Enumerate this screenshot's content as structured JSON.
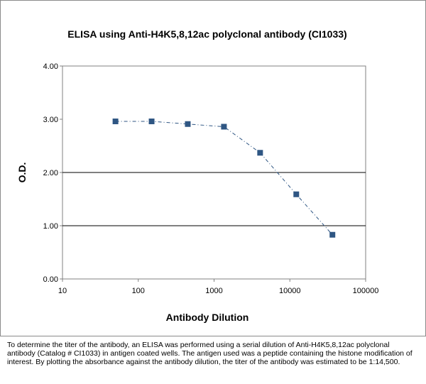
{
  "chart_data": {
    "type": "line",
    "title": "ELISA using Anti-H4K5,8,12ac  polyclonal antibody (CI1033)",
    "xlabel": "Antibody Dilution",
    "ylabel": "O.D.",
    "x_scale": "log",
    "xlim": [
      10,
      100000
    ],
    "ylim": [
      0,
      4
    ],
    "x_tick_labels": [
      "10",
      "100",
      "1000",
      "10000",
      "100000"
    ],
    "y_tick_labels": [
      "0.00",
      "1.00",
      "2.00",
      "3.00",
      "4.00"
    ],
    "gridlines_y": [
      1,
      2
    ],
    "series": [
      {
        "color": "#2F5683",
        "x": [
          50,
          150,
          450,
          1350,
          4050,
          12150,
          36450
        ],
        "y": [
          2.96,
          2.96,
          2.91,
          2.86,
          2.37,
          1.59,
          0.83
        ]
      }
    ]
  },
  "caption": "To determine the titer of the antibody, an ELISA was performed using a serial dilution of Anti-H4K5,8,12ac polyclonal antibody (Catalog # CI1033) in antigen coated wells. The antigen used was a peptide containing the histone modification of interest. By plotting the absorbance against the antibody dilution, the titer of the antibody was estimated to be 1:14,500."
}
